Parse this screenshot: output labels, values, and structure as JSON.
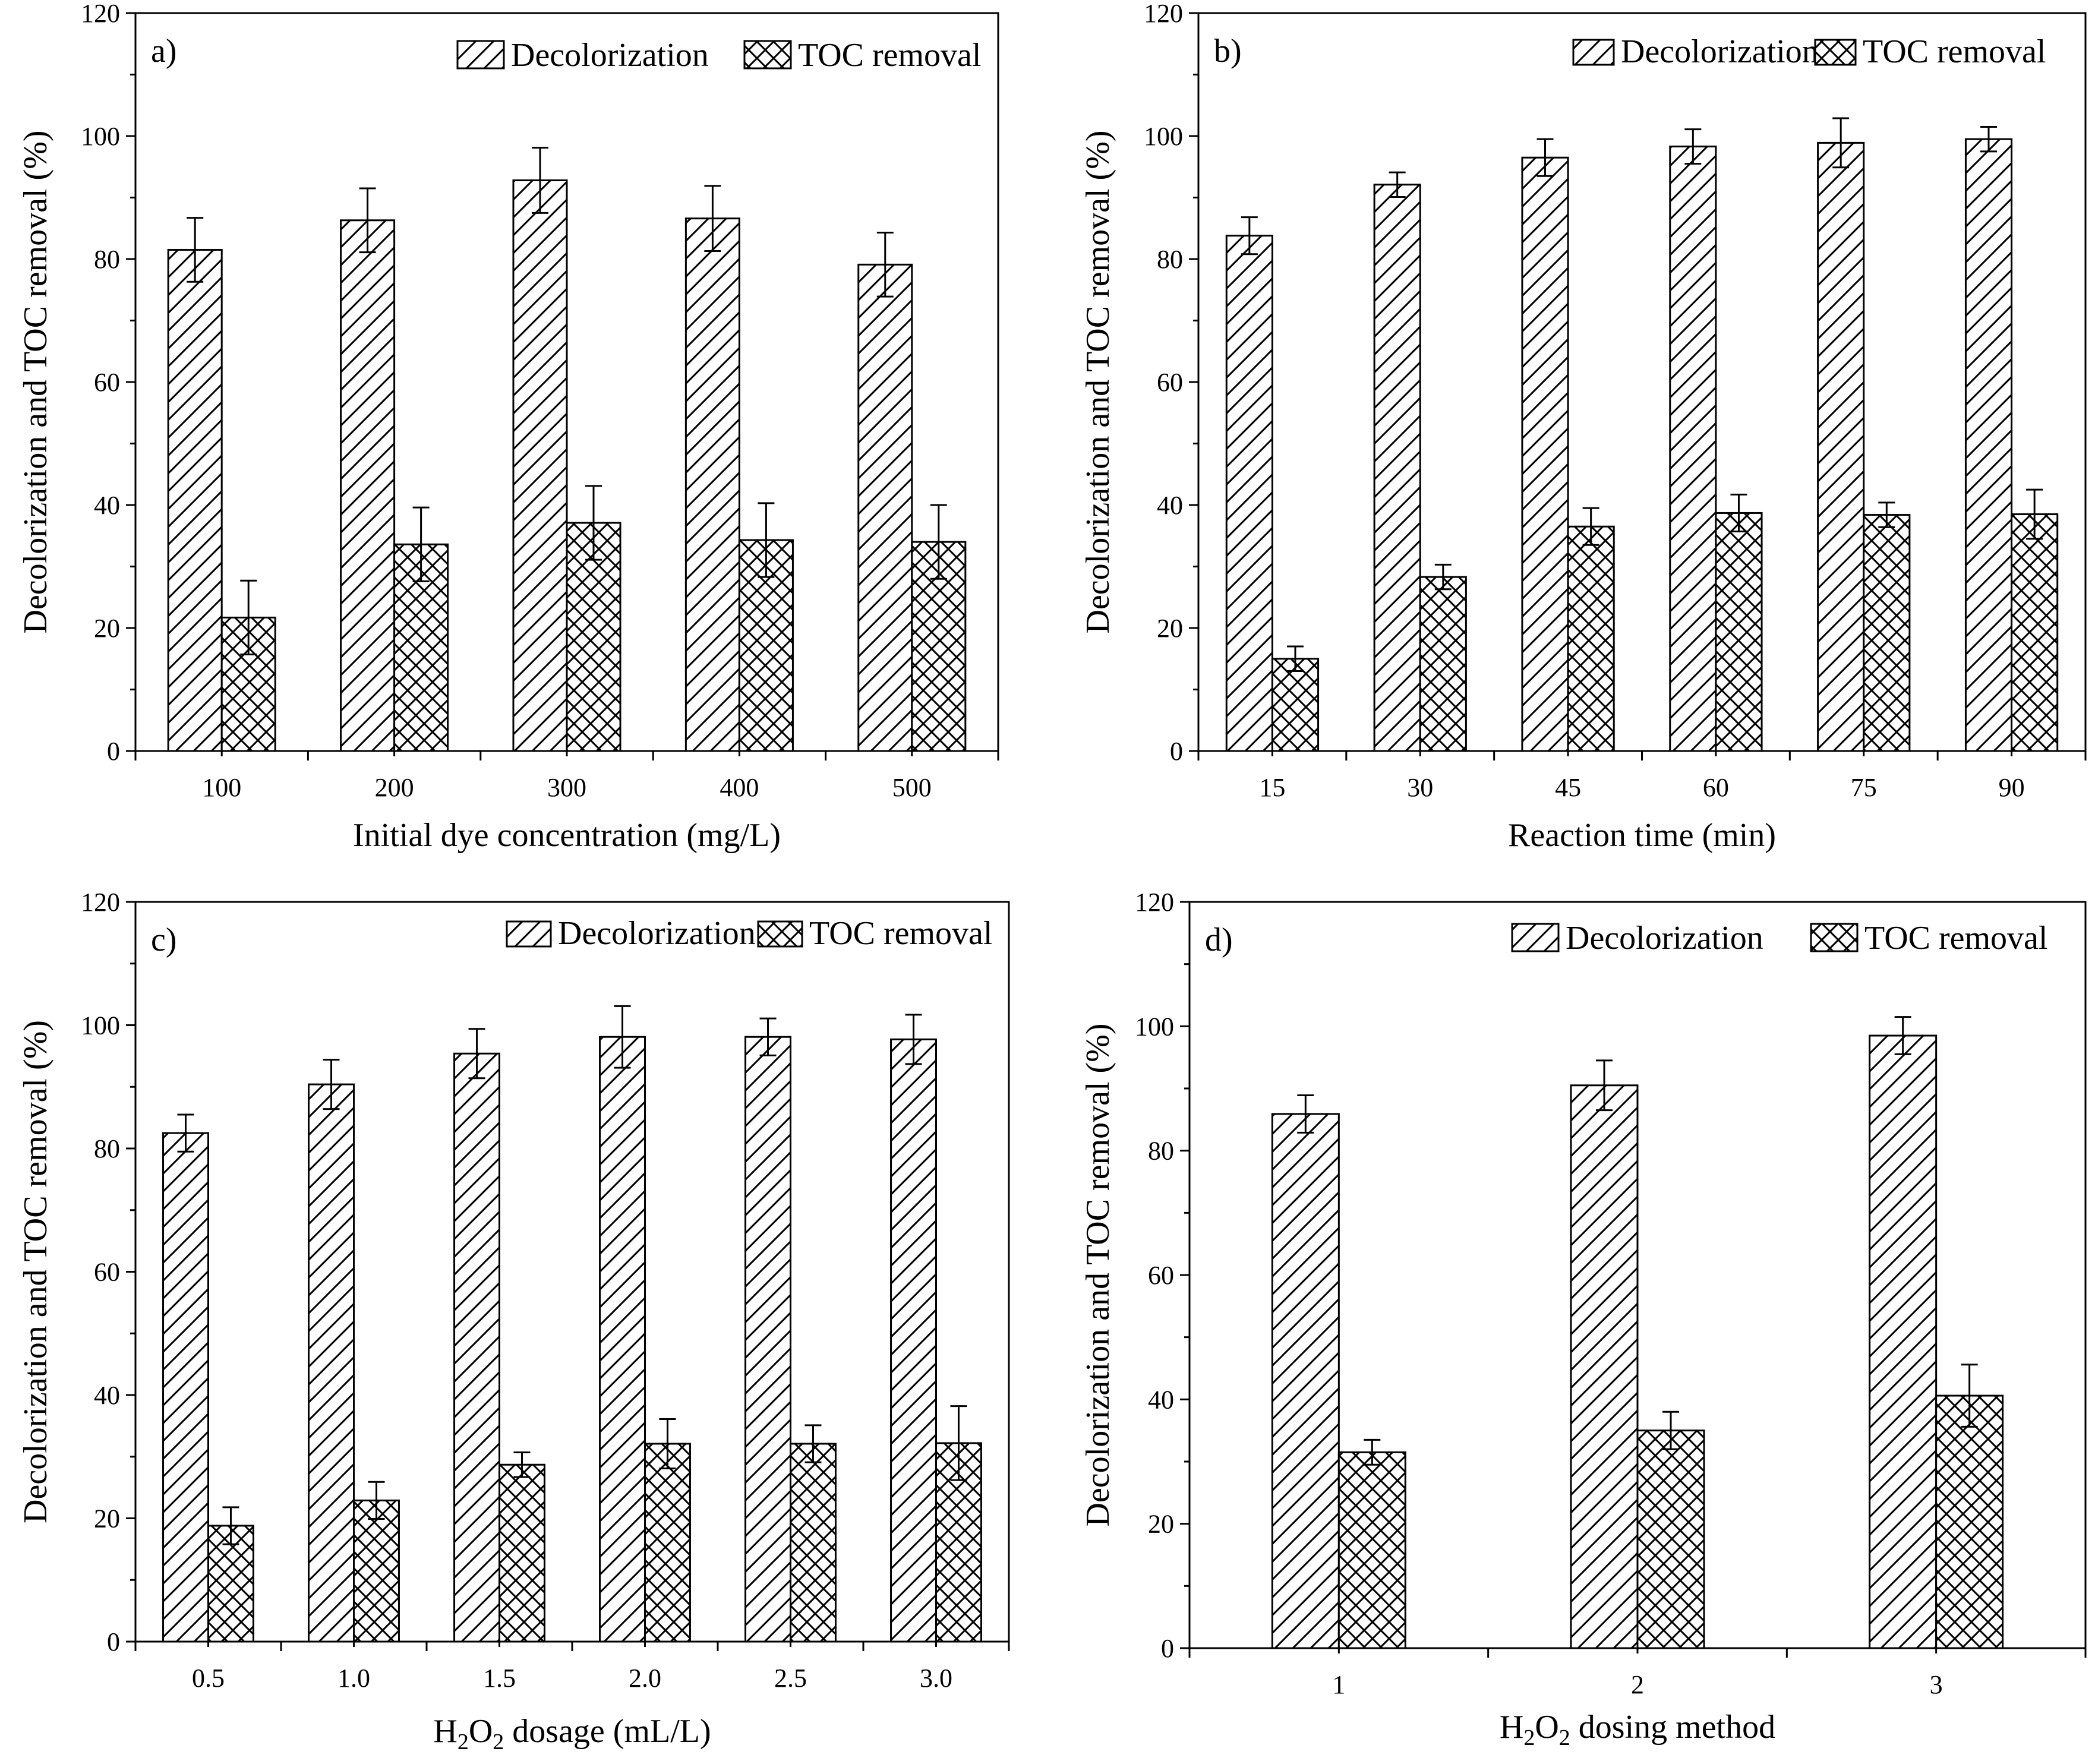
{
  "figure": {
    "series_names": [
      "Decolorization",
      "TOC removal"
    ],
    "colors": {
      "stroke": "#000000",
      "background": "#ffffff"
    }
  },
  "chart_data": [
    {
      "type": "bar",
      "panel_label": "a)",
      "title": "",
      "xlabel": "Initial dye concentration (mg/L)",
      "xlabel_sub": null,
      "ylabel": "Decolorization and TOC removal (%)",
      "ylim": [
        0,
        120
      ],
      "yticks": [
        "0",
        "20",
        "40",
        "60",
        "80",
        "100",
        "120"
      ],
      "categories": [
        "100",
        "200",
        "300",
        "400",
        "500"
      ],
      "legend": {
        "position": "top-right",
        "labels": [
          "Decolorization",
          "TOC removal"
        ]
      },
      "series": [
        {
          "name": "Decolorization",
          "pattern": "diagonal",
          "values": [
            81.5,
            86.3,
            92.8,
            86.6,
            79.1
          ],
          "errors": [
            5.2,
            5.2,
            5.3,
            5.3,
            5.2
          ]
        },
        {
          "name": "TOC removal",
          "pattern": "crosshatch",
          "values": [
            21.7,
            33.6,
            37.1,
            34.3,
            34.0
          ],
          "errors": [
            6.0,
            6.0,
            6.0,
            6.0,
            6.0
          ]
        }
      ]
    },
    {
      "type": "bar",
      "panel_label": "b)",
      "title": "",
      "xlabel": "Reaction time (min)",
      "xlabel_sub": null,
      "ylabel": "Decolorization and TOC removal (%)",
      "ylim": [
        0,
        120
      ],
      "yticks": [
        "0",
        "20",
        "40",
        "60",
        "80",
        "100",
        "120"
      ],
      "categories": [
        "15",
        "30",
        "45",
        "60",
        "75",
        "90"
      ],
      "legend": {
        "position": "top-right",
        "labels": [
          "Decolorization",
          "TOC removal"
        ]
      },
      "series": [
        {
          "name": "Decolorization",
          "pattern": "diagonal",
          "values": [
            83.8,
            92.1,
            96.5,
            98.3,
            98.9,
            99.5
          ],
          "errors": [
            3.0,
            2.0,
            3.0,
            2.8,
            4.0,
            2.0
          ]
        },
        {
          "name": "TOC removal",
          "pattern": "crosshatch",
          "values": [
            15.0,
            28.3,
            36.5,
            38.7,
            38.4,
            38.5
          ],
          "errors": [
            2.0,
            2.0,
            3.0,
            3.0,
            2.0,
            4.0
          ]
        }
      ]
    },
    {
      "type": "bar",
      "panel_label": "c)",
      "title": "",
      "xlabel": "",
      "xlabel_sub": {
        "pre": "H",
        "sub1": "2",
        "mid": "O",
        "sub2": "2",
        "post": " dosage (mL/L)"
      },
      "ylabel": "Decolorization and TOC removal (%)",
      "ylim": [
        0,
        120
      ],
      "yticks": [
        "0",
        "20",
        "40",
        "60",
        "80",
        "100",
        "120"
      ],
      "categories": [
        "0.5",
        "1.0",
        "1.5",
        "2.0",
        "2.5",
        "3.0"
      ],
      "legend": {
        "position": "top-right",
        "labels": [
          "Decolorization",
          "TOC removal"
        ]
      },
      "series": [
        {
          "name": "Decolorization",
          "pattern": "diagonal",
          "values": [
            82.5,
            90.4,
            95.4,
            98.1,
            98.1,
            97.7
          ],
          "errors": [
            3.0,
            4.0,
            4.0,
            5.0,
            3.0,
            4.0
          ]
        },
        {
          "name": "TOC removal",
          "pattern": "crosshatch",
          "values": [
            18.8,
            22.9,
            28.7,
            32.1,
            32.1,
            32.2
          ],
          "errors": [
            3.0,
            3.0,
            2.0,
            4.0,
            3.0,
            6.0
          ]
        }
      ]
    },
    {
      "type": "bar",
      "panel_label": "d)",
      "title": "",
      "xlabel": "",
      "xlabel_sub": {
        "pre": "H",
        "sub1": "2",
        "mid": "O",
        "sub2": "2",
        "post": " dosing method"
      },
      "ylabel": "Decolorization and TOC removal (%)",
      "ylim": [
        0,
        120
      ],
      "yticks": [
        "0",
        "20",
        "40",
        "60",
        "80",
        "100",
        "120"
      ],
      "categories": [
        "1",
        "2",
        "3"
      ],
      "legend": {
        "position": "top-right",
        "labels": [
          "Decolorization",
          "TOC removal"
        ]
      },
      "series": [
        {
          "name": "Decolorization",
          "pattern": "diagonal",
          "values": [
            85.9,
            90.5,
            98.5
          ],
          "errors": [
            3.0,
            4.0,
            3.0
          ]
        },
        {
          "name": "TOC removal",
          "pattern": "crosshatch",
          "values": [
            31.5,
            35.0,
            40.6
          ],
          "errors": [
            2.0,
            3.0,
            5.0
          ]
        }
      ]
    }
  ]
}
